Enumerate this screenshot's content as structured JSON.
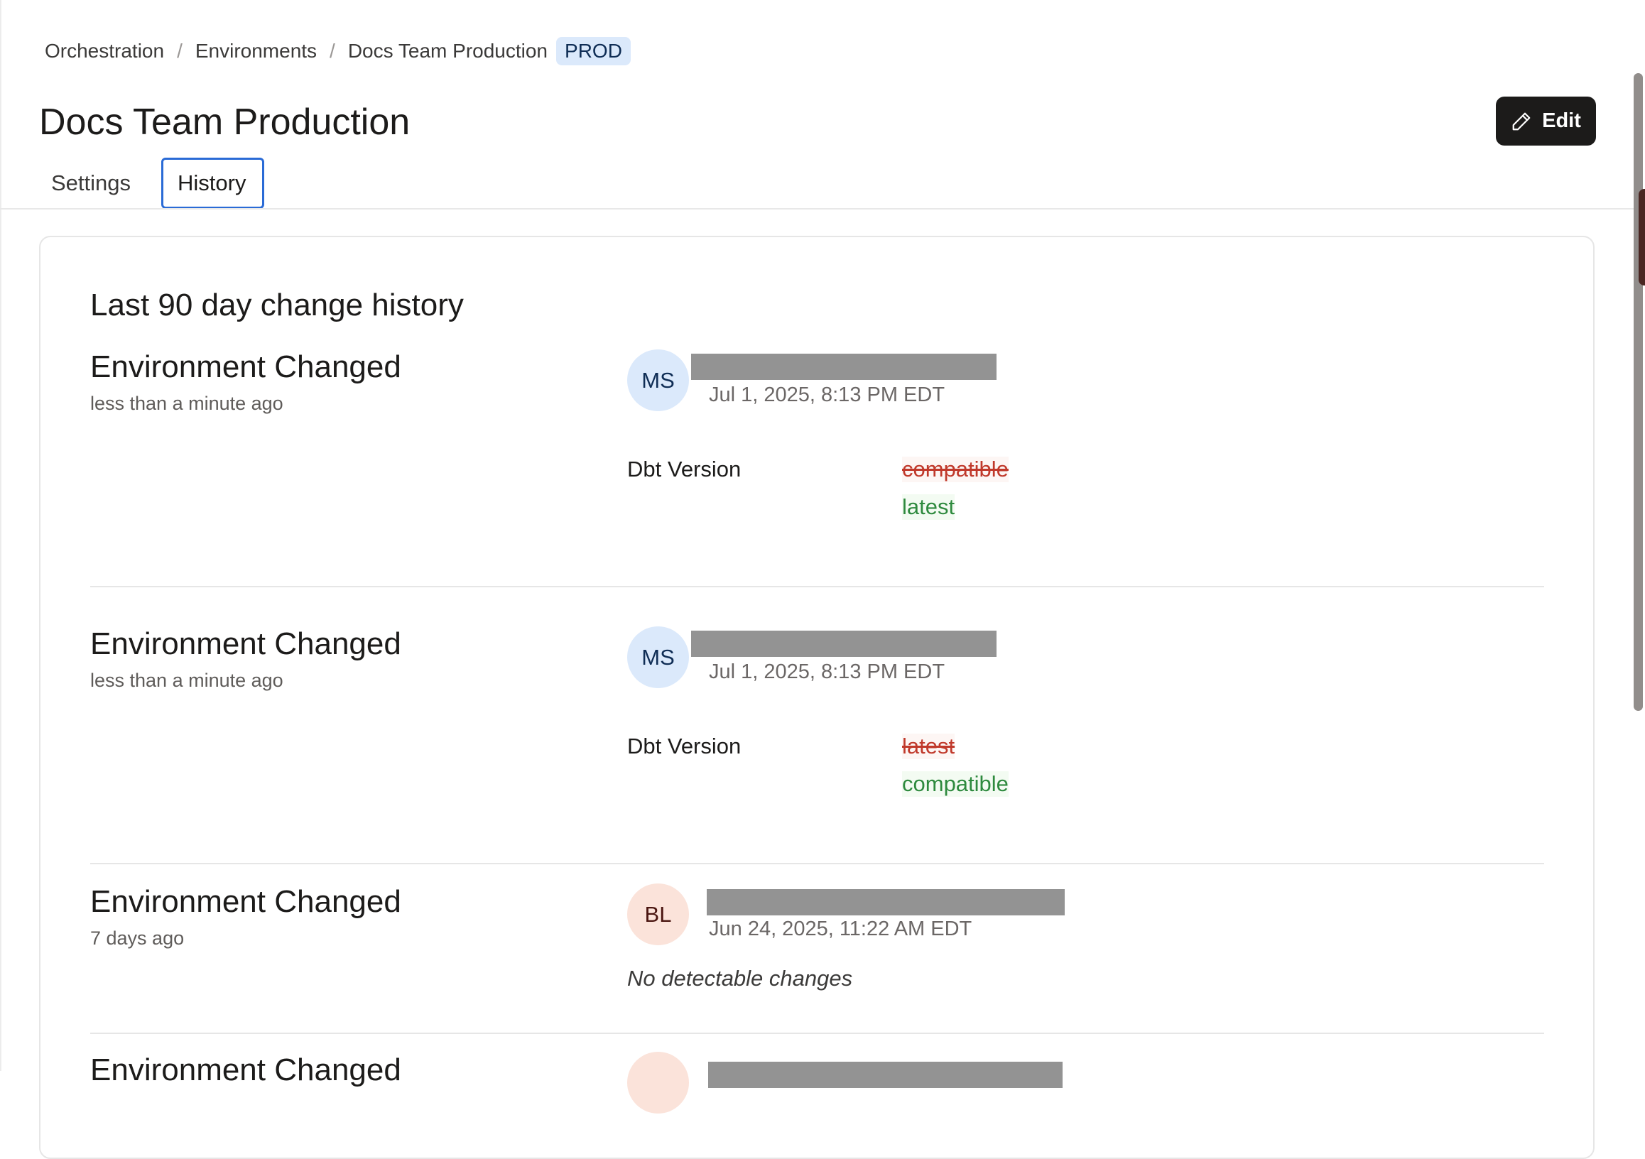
{
  "breadcrumb": {
    "items": [
      "Orchestration",
      "Environments",
      "Docs Team Production"
    ],
    "separator": "/",
    "badge": "PROD"
  },
  "page": {
    "title": "Docs Team Production",
    "edit_label": "Edit",
    "edit_icon": "pencil-icon"
  },
  "tabs": [
    {
      "label": "Settings",
      "active": false
    },
    {
      "label": "History",
      "active": true
    }
  ],
  "history": {
    "title": "Last 90 day change history",
    "entries": [
      {
        "title": "Environment Changed",
        "relative_time": "less than a minute ago",
        "initials": "MS",
        "timestamp": "Jul 1, 2025, 8:13 PM EDT",
        "changes": [
          {
            "field": "Dbt Version",
            "old": "compatible",
            "new": "latest"
          }
        ]
      },
      {
        "title": "Environment Changed",
        "relative_time": "less than a minute ago",
        "initials": "MS",
        "timestamp": "Jul 1, 2025, 8:13 PM EDT",
        "changes": [
          {
            "field": "Dbt Version",
            "old": "latest",
            "new": "compatible"
          }
        ]
      },
      {
        "title": "Environment Changed",
        "relative_time": "7 days ago",
        "initials": "BL",
        "timestamp": "Jun 24, 2025, 11:22 AM EDT",
        "no_changes": "No detectable changes"
      },
      {
        "title": "Environment Changed"
      }
    ]
  },
  "colors": {
    "accent": "#2a6bd6",
    "removed": "#c0392b",
    "added": "#2e8a3e",
    "button": "#1c1b1a",
    "badge_bg": "#dbe9fb"
  }
}
